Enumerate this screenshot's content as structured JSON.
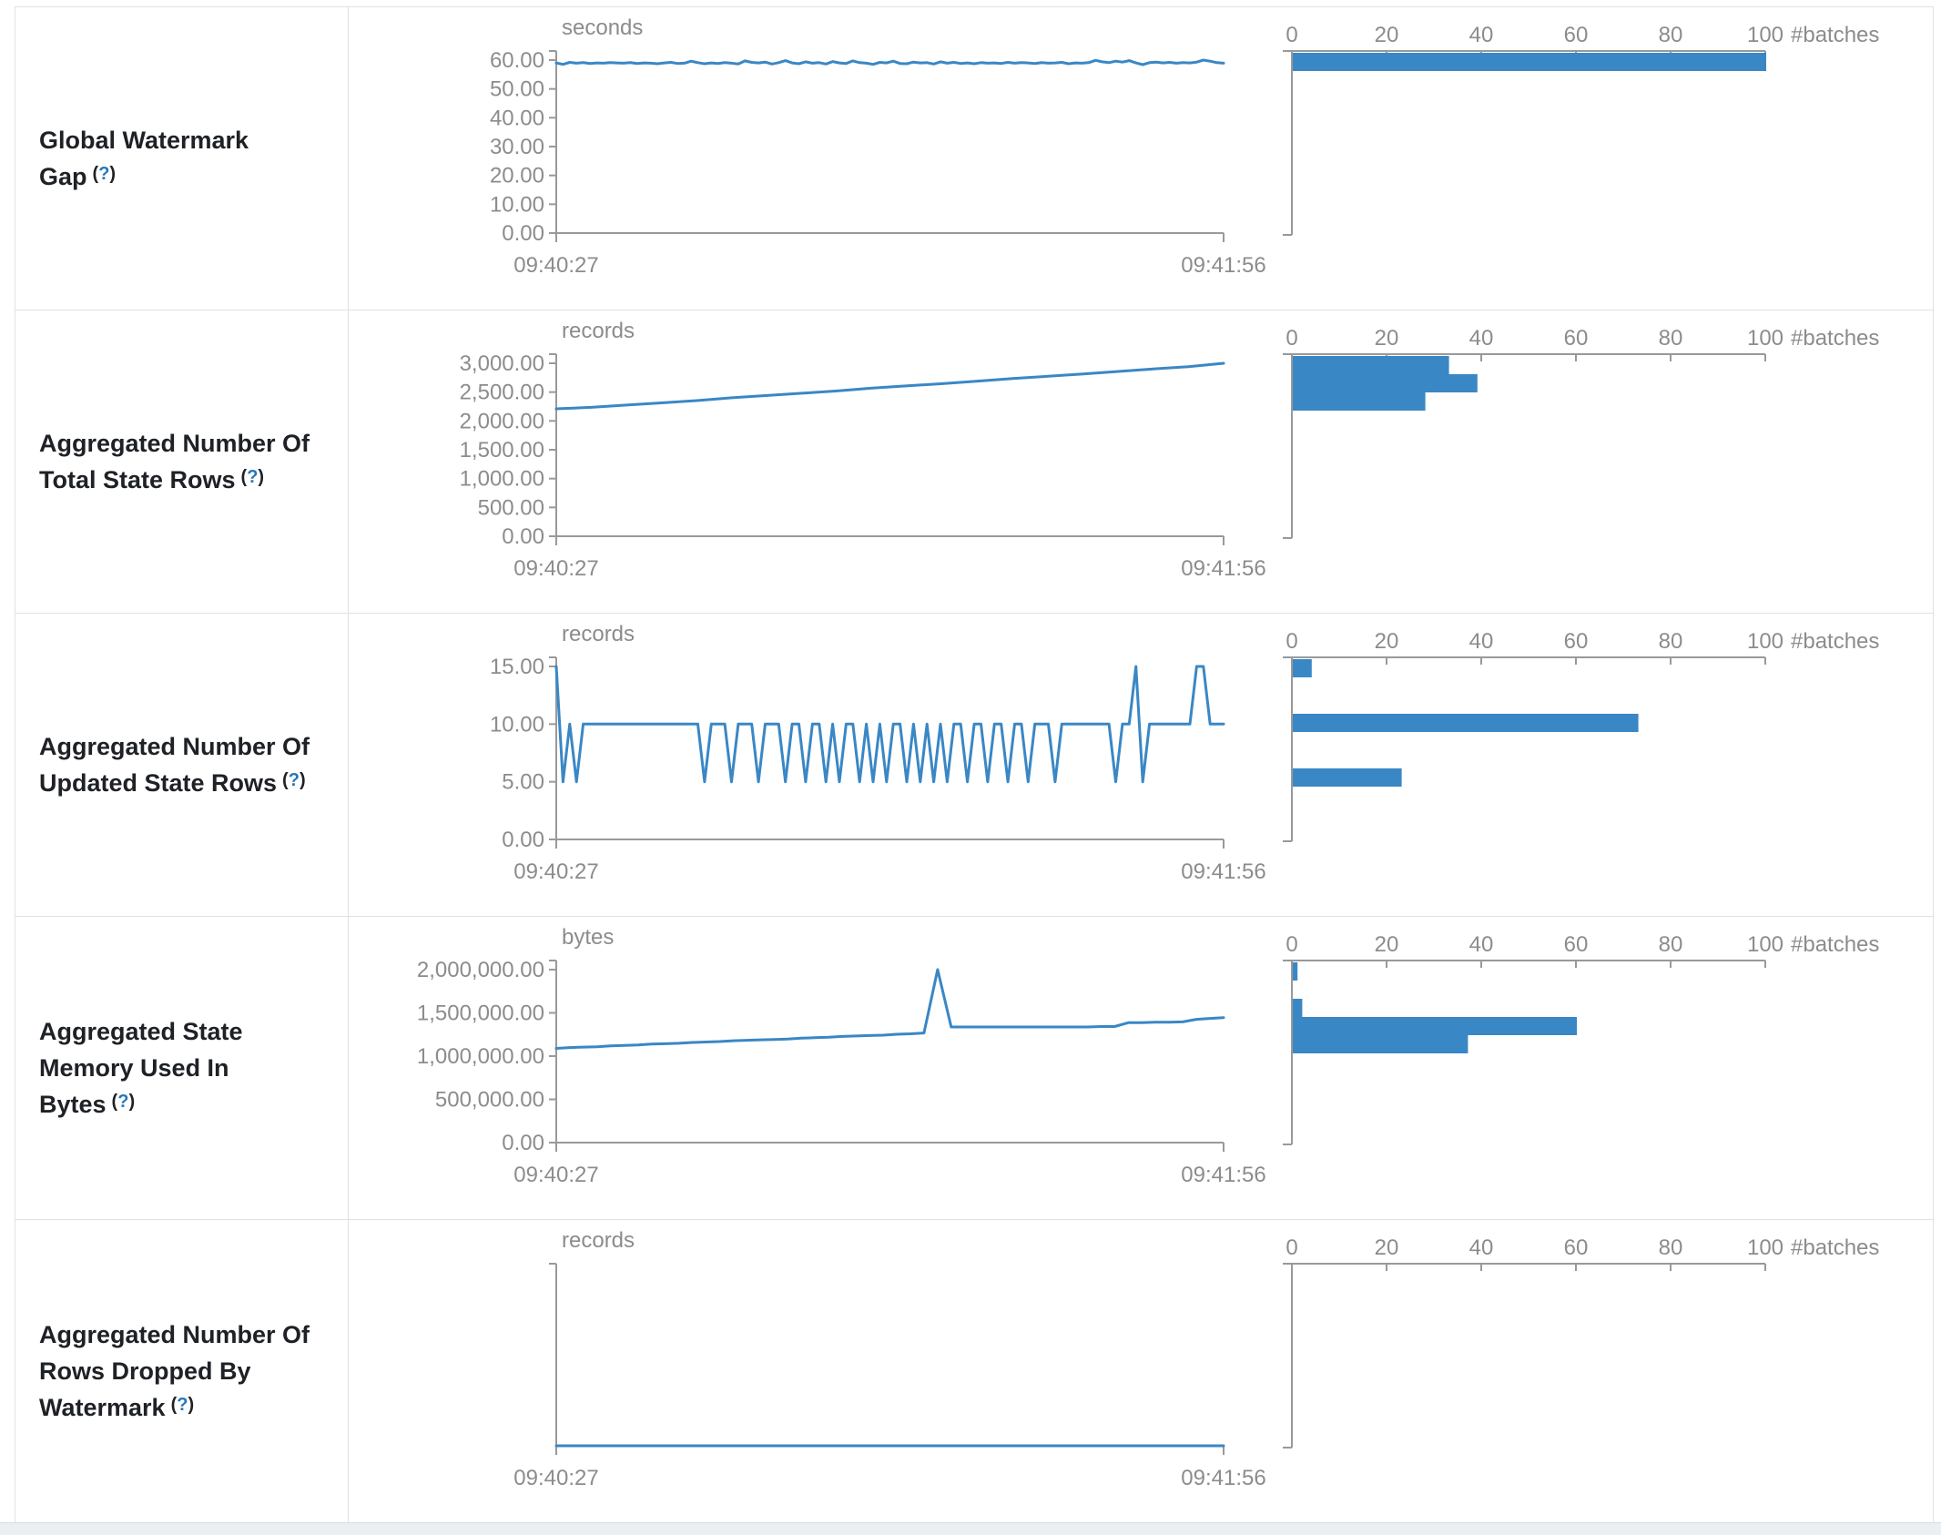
{
  "colors": {
    "accent_blue": "#3a87c5",
    "axis_line": "#999999",
    "axis_text": "#8c8c8c",
    "label_text": "#1e2125",
    "help_blue": "#2577be",
    "table_border": "#dee2e6",
    "bottom_strip": "#eceff1"
  },
  "chart_data": [
    {
      "type": "line+histogram",
      "label": "Global Watermark Gap",
      "help": {
        "open": "(",
        "q": "?",
        "close": ")"
      },
      "timeline": {
        "title_unit": "seconds",
        "x_start": "09:40:27",
        "x_end": "09:41:56",
        "y_tick_labels": [
          "60.00",
          "50.00",
          "40.00",
          "30.00",
          "20.00",
          "10.00",
          "0.00"
        ],
        "y_axis_max": 61.2,
        "values": [
          60.2,
          59.7,
          60.4,
          60.1,
          60.3,
          60.0,
          60.2,
          60.1,
          60.3,
          60.2,
          60.1,
          60.3,
          60.0,
          60.2,
          60.1,
          59.9,
          60.2,
          60.4,
          60.0,
          60.1,
          60.8,
          60.3,
          59.9,
          60.2,
          60.0,
          60.3,
          60.1,
          59.8,
          60.9,
          60.4,
          60.2,
          60.5,
          59.8,
          60.3,
          61.0,
          60.2,
          59.9,
          60.6,
          60.1,
          60.3,
          59.8,
          60.7,
          60.2,
          60.0,
          60.9,
          60.3,
          60.1,
          59.7,
          60.4,
          60.2,
          60.8,
          60.0,
          59.9,
          60.5,
          60.2,
          60.3,
          59.8,
          60.6,
          60.1,
          60.4,
          60.0,
          60.2,
          59.9,
          60.3,
          60.1,
          60.2,
          60.0,
          60.4,
          60.1,
          60.3,
          60.2,
          60.0,
          60.3,
          60.1,
          60.2,
          60.4,
          59.9,
          60.2,
          60.1,
          60.3,
          61.1,
          60.6,
          60.3,
          60.8,
          60.5,
          61.0,
          60.2,
          59.6,
          60.3,
          60.5,
          60.2,
          60.4,
          60.1,
          60.3,
          60.2,
          60.5,
          61.2,
          60.8,
          60.3,
          60.1
        ]
      },
      "histogram": {
        "x_label": "#batches",
        "x_ticks": [
          0,
          20,
          40,
          60,
          80,
          100
        ],
        "x_max": 100,
        "bars": [
          {
            "slot": 0,
            "count": 100
          }
        ]
      }
    },
    {
      "type": "line+histogram",
      "label": "Aggregated Number Of Total State Rows",
      "help": {
        "open": "(",
        "q": "?",
        "close": ")"
      },
      "timeline": {
        "title_unit": "records",
        "x_start": "09:40:27",
        "x_end": "09:41:56",
        "y_tick_labels": [
          "3,000.00",
          "2,500.00",
          "2,000.00",
          "1,500.00",
          "1,000.00",
          "500.00",
          "0.00"
        ],
        "y_axis_max": 3060,
        "values": [
          2255,
          2280,
          2320,
          2360,
          2400,
          2450,
          2490,
          2530,
          2570,
          2620,
          2660,
          2700,
          2745,
          2790,
          2830,
          2870,
          2915,
          2960,
          3000,
          3060
        ]
      },
      "histogram": {
        "x_label": "#batches",
        "x_ticks": [
          0,
          20,
          40,
          60,
          80,
          100
        ],
        "x_max": 100,
        "bars": [
          {
            "slot": 0,
            "count": 33
          },
          {
            "slot": 1,
            "count": 39
          },
          {
            "slot": 2,
            "count": 28
          }
        ]
      }
    },
    {
      "type": "line+histogram",
      "label": "Aggregated Number Of Updated State Rows",
      "help": {
        "open": "(",
        "q": "?",
        "close": ")"
      },
      "timeline": {
        "title_unit": "records",
        "x_start": "09:40:27",
        "x_end": "09:41:56",
        "y_tick_labels": [
          "15.00",
          "10.00",
          "5.00",
          "0.00"
        ],
        "y_axis_max": 15,
        "values": [
          15,
          5,
          10,
          5,
          10,
          10,
          10,
          10,
          10,
          10,
          10,
          10,
          10,
          10,
          10,
          10,
          10,
          10,
          10,
          10,
          10,
          10,
          5,
          10,
          10,
          10,
          5,
          10,
          10,
          10,
          5,
          10,
          10,
          10,
          5,
          10,
          10,
          5,
          10,
          10,
          5,
          10,
          5,
          10,
          10,
          5,
          10,
          5,
          10,
          5,
          10,
          10,
          5,
          10,
          5,
          10,
          5,
          10,
          5,
          10,
          10,
          5,
          10,
          10,
          5,
          10,
          10,
          5,
          10,
          10,
          5,
          10,
          10,
          10,
          5,
          10,
          10,
          10,
          10,
          10,
          10,
          10,
          10,
          5,
          10,
          10,
          15,
          5,
          10,
          10,
          10,
          10,
          10,
          10,
          10,
          15,
          15,
          10,
          10,
          10
        ]
      },
      "histogram": {
        "x_label": "#batches",
        "x_ticks": [
          0,
          20,
          40,
          60,
          80,
          100
        ],
        "x_max": 100,
        "bars": [
          {
            "slot": 0,
            "count": 4
          },
          {
            "slot": 3,
            "count": 73
          },
          {
            "slot": 6,
            "count": 23
          }
        ]
      }
    },
    {
      "type": "line+histogram",
      "label": "Aggregated State Memory Used In Bytes",
      "help": {
        "open": "(",
        "q": "?",
        "close": ")"
      },
      "timeline": {
        "title_unit": "bytes",
        "x_start": "09:40:27",
        "x_end": "09:41:56",
        "y_tick_labels": [
          "2,000,000.00",
          "1,500,000.00",
          "1,000,000.00",
          "500,000.00",
          "0.00"
        ],
        "y_axis_max": 2020000,
        "values": [
          1100000,
          1110000,
          1115000,
          1120000,
          1130000,
          1135000,
          1140000,
          1150000,
          1155000,
          1160000,
          1170000,
          1175000,
          1180000,
          1190000,
          1195000,
          1200000,
          1205000,
          1210000,
          1220000,
          1225000,
          1230000,
          1240000,
          1245000,
          1250000,
          1255000,
          1265000,
          1270000,
          1280000,
          2020000,
          1350000,
          1350000,
          1350000,
          1350000,
          1350000,
          1350000,
          1350000,
          1350000,
          1350000,
          1350000,
          1350000,
          1355000,
          1355000,
          1400000,
          1400000,
          1405000,
          1405000,
          1410000,
          1440000,
          1450000,
          1460000
        ]
      },
      "histogram": {
        "x_label": "#batches",
        "x_ticks": [
          0,
          20,
          40,
          60,
          80,
          100
        ],
        "x_max": 100,
        "bars": [
          {
            "slot": 0,
            "count": 1
          },
          {
            "slot": 2,
            "count": 2
          },
          {
            "slot": 3,
            "count": 60
          },
          {
            "slot": 4,
            "count": 37
          }
        ]
      }
    },
    {
      "type": "line+histogram",
      "label": "Aggregated Number Of Rows Dropped By Watermark",
      "help": {
        "open": "(",
        "q": "?",
        "close": ")"
      },
      "timeline": {
        "title_unit": "records",
        "x_start": "09:40:27",
        "x_end": "09:41:56",
        "y_tick_labels": [],
        "y_axis_max": 1,
        "values": [
          0,
          0,
          0,
          0,
          0,
          0,
          0,
          0,
          0,
          0,
          0
        ]
      },
      "histogram": {
        "x_label": "#batches",
        "x_ticks": [
          0,
          20,
          40,
          60,
          80,
          100
        ],
        "x_max": 100,
        "bars": []
      }
    }
  ]
}
